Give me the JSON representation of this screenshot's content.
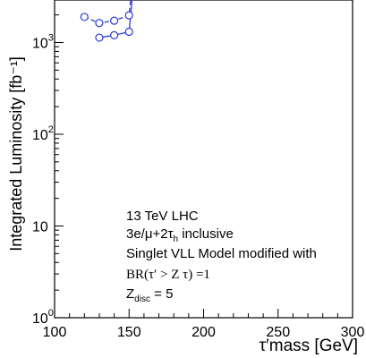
{
  "chart_data": {
    "type": "line",
    "xlabel": "τ′mass  [GeV]",
    "ylabel": "Integrated Luminosity [fb⁻¹]",
    "xlim": [
      100,
      300
    ],
    "ylim": [
      1,
      3000
    ],
    "yscale": "log",
    "x_ticks": [
      "100",
      "150",
      "200",
      "250",
      "300"
    ],
    "y_ticks": [
      {
        "base": "10",
        "exp": "3",
        "value": 1000
      },
      {
        "base": "10",
        "exp": "2",
        "value": 100
      },
      {
        "base": "10",
        "exp": "",
        "value": 10
      },
      {
        "base": "10",
        "exp": "0",
        "value": 1
      }
    ],
    "grid": false,
    "legend": "none",
    "series": [
      {
        "style": "solid",
        "color": "#2a3bd6",
        "points": [
          [
            130,
            1130
          ],
          [
            140,
            1200
          ],
          [
            150,
            1310
          ],
          [
            152,
            3000
          ]
        ]
      },
      {
        "style": "dashed",
        "color": "#2a3bd6",
        "points": [
          [
            120,
            1900
          ],
          [
            130,
            1630
          ],
          [
            140,
            1730
          ],
          [
            150,
            1980
          ],
          [
            151,
            3000
          ]
        ]
      }
    ],
    "annotations": {
      "line1": "13 TeV LHC",
      "line2": "3e/μ+2τ",
      "line2_sub": "h",
      "line2_rest": " inclusive",
      "line3": "Singlet VLL Model modified with",
      "line4": "BR(τ′ > Z τ) =1",
      "line5_main": "Z",
      "line5_sub": "disc",
      "line5_rest": " = 5"
    }
  }
}
